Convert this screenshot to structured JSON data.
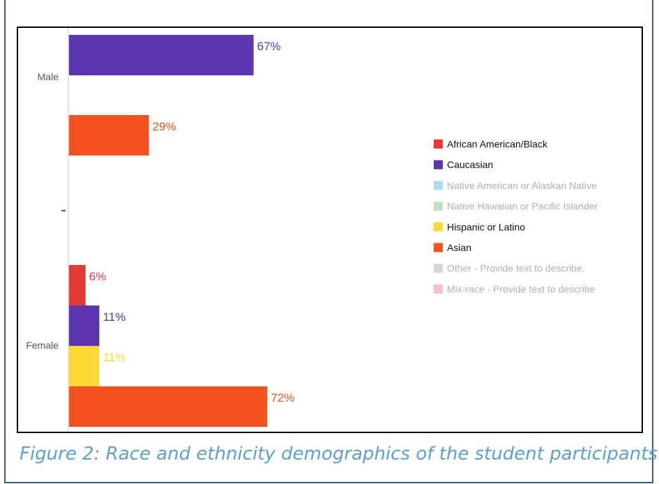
{
  "caption": "Figure 2: Race and ethnicity demographics of the student participants.",
  "colors": {
    "African American/Black": "#e53935",
    "Caucasian": "#5e35b1",
    "Native American or Alaskan Native": "#a9def2",
    "Native Hawaiian or Pacific Islander": "#bfe3c0",
    "Hispanic or Latino": "#fdd835",
    "Asian": "#f4511e",
    "Other - Provide text to describe.": "#cfd8dc",
    "Mix-race - Provide text to describe": "#f8bbd0"
  },
  "chart_data": {
    "type": "bar",
    "orientation": "horizontal",
    "categories": [
      "Male",
      "Female"
    ],
    "xlim": [
      0,
      100
    ],
    "value_suffix": "%",
    "legend_position": "right",
    "grid": false,
    "series": [
      {
        "name": "African American/Black",
        "values": [
          null,
          6
        ],
        "legend_active": true
      },
      {
        "name": "Caucasian",
        "values": [
          67,
          11
        ],
        "legend_active": true
      },
      {
        "name": "Native American or Alaskan Native",
        "values": [
          null,
          null
        ],
        "legend_active": false
      },
      {
        "name": "Native Hawaiian or Pacific Islander",
        "values": [
          null,
          null
        ],
        "legend_active": false
      },
      {
        "name": "Hispanic or Latino",
        "values": [
          null,
          11
        ],
        "legend_active": true
      },
      {
        "name": "Asian",
        "values": [
          29,
          72
        ],
        "legend_active": true
      },
      {
        "name": "Other - Provide text to describe.",
        "values": [
          null,
          null
        ],
        "legend_active": false
      },
      {
        "name": "Mix-race - Provide text to describe",
        "values": [
          null,
          null
        ],
        "legend_active": false
      }
    ]
  }
}
